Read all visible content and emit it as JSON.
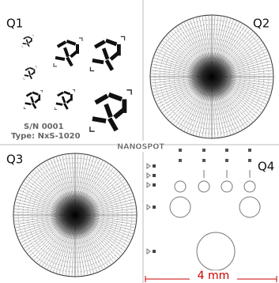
{
  "quadrants": {
    "q1": "Q1",
    "q2": "Q2",
    "q3": "Q3",
    "q4": "Q4"
  },
  "serial": "S/N 0001",
  "type": "Type: NxS-1020",
  "logo": "NANOSPOT",
  "scale": "4 mm"
}
